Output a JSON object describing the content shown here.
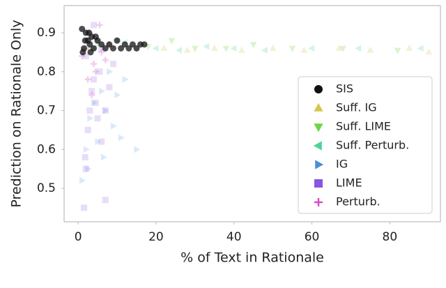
{
  "chart_data": {
    "type": "scatter",
    "xlabel": "% of Text in Rationale",
    "ylabel": "Prediction on Rationale Only",
    "xlim": [
      -3.6,
      93
    ],
    "ylim": [
      0.414,
      0.97
    ],
    "xticks": [
      0,
      20,
      40,
      60,
      80
    ],
    "yticks": [
      0.5,
      0.6,
      0.7,
      0.8,
      0.9
    ],
    "legend": "lower right",
    "series": [
      {
        "name": "SIS",
        "color": "#111111",
        "marker": "circle",
        "alpha": 0.75,
        "x": [
          1,
          1.5,
          2,
          2.5,
          3,
          3.5,
          4,
          5,
          6,
          7,
          8,
          9,
          10,
          11,
          12,
          13,
          14,
          15,
          16,
          17,
          1.2,
          2.8,
          4.5,
          3.2,
          1.8
        ],
        "values": [
          0.91,
          0.86,
          0.9,
          0.88,
          0.87,
          0.89,
          0.86,
          0.88,
          0.87,
          0.86,
          0.87,
          0.86,
          0.88,
          0.86,
          0.87,
          0.86,
          0.87,
          0.86,
          0.87,
          0.87,
          0.85,
          0.9,
          0.89,
          0.85,
          0.88
        ]
      },
      {
        "name": "Suff. IG",
        "color": "#d4c653",
        "marker": "triangle-up",
        "alpha": 0.25,
        "x": [
          3,
          8,
          15,
          22,
          28,
          35,
          42,
          50,
          58,
          67,
          75,
          85,
          90
        ],
        "values": [
          0.86,
          0.87,
          0.86,
          0.86,
          0.855,
          0.86,
          0.855,
          0.86,
          0.855,
          0.86,
          0.855,
          0.86,
          0.85
        ]
      },
      {
        "name": "Suff. LIME",
        "color": "#6ed444",
        "marker": "triangle-down",
        "alpha": 0.25,
        "x": [
          5,
          10,
          18,
          24,
          30,
          38,
          45,
          55,
          68,
          82
        ],
        "values": [
          0.87,
          0.88,
          0.865,
          0.88,
          0.86,
          0.86,
          0.87,
          0.86,
          0.86,
          0.855
        ]
      },
      {
        "name": "Suff. Perturb.",
        "color": "#4fd39a",
        "marker": "triangle-left",
        "alpha": 0.25,
        "x": [
          4,
          12,
          20,
          26,
          33,
          40,
          48,
          60,
          72,
          88
        ],
        "values": [
          0.86,
          0.875,
          0.86,
          0.855,
          0.865,
          0.86,
          0.855,
          0.86,
          0.86,
          0.86
        ]
      },
      {
        "name": "IG",
        "color": "#4a90d9",
        "marker": "triangle-right",
        "alpha": 0.2,
        "x": [
          1,
          2,
          3,
          4,
          5,
          6,
          7,
          8,
          9,
          10,
          11,
          12,
          2.5,
          6.5,
          15
        ],
        "values": [
          0.52,
          0.6,
          0.68,
          0.72,
          0.62,
          0.75,
          0.7,
          0.8,
          0.66,
          0.74,
          0.63,
          0.78,
          0.55,
          0.58,
          0.6
        ]
      },
      {
        "name": "LIME",
        "color": "#8a55e0",
        "marker": "square",
        "alpha": 0.2,
        "x": [
          1.5,
          2,
          2.5,
          3,
          3.5,
          4,
          4.5,
          5,
          5.5,
          6,
          7,
          8,
          2,
          3,
          4,
          6,
          7,
          1.8,
          9
        ],
        "values": [
          0.45,
          0.55,
          0.65,
          0.7,
          0.75,
          0.78,
          0.72,
          0.68,
          0.8,
          0.62,
          0.7,
          0.76,
          0.84,
          0.88,
          0.92,
          0.86,
          0.47,
          0.58,
          0.82
        ]
      },
      {
        "name": "Perturb.",
        "color": "#d44fc6",
        "marker": "plus",
        "alpha": 0.3,
        "x": [
          1,
          2,
          3,
          4,
          5,
          6,
          2.5,
          3.5,
          4.5,
          5.5,
          7,
          8
        ],
        "values": [
          0.84,
          0.86,
          0.9,
          0.82,
          0.88,
          0.85,
          0.78,
          0.74,
          0.8,
          0.92,
          0.83,
          0.87
        ]
      }
    ]
  }
}
